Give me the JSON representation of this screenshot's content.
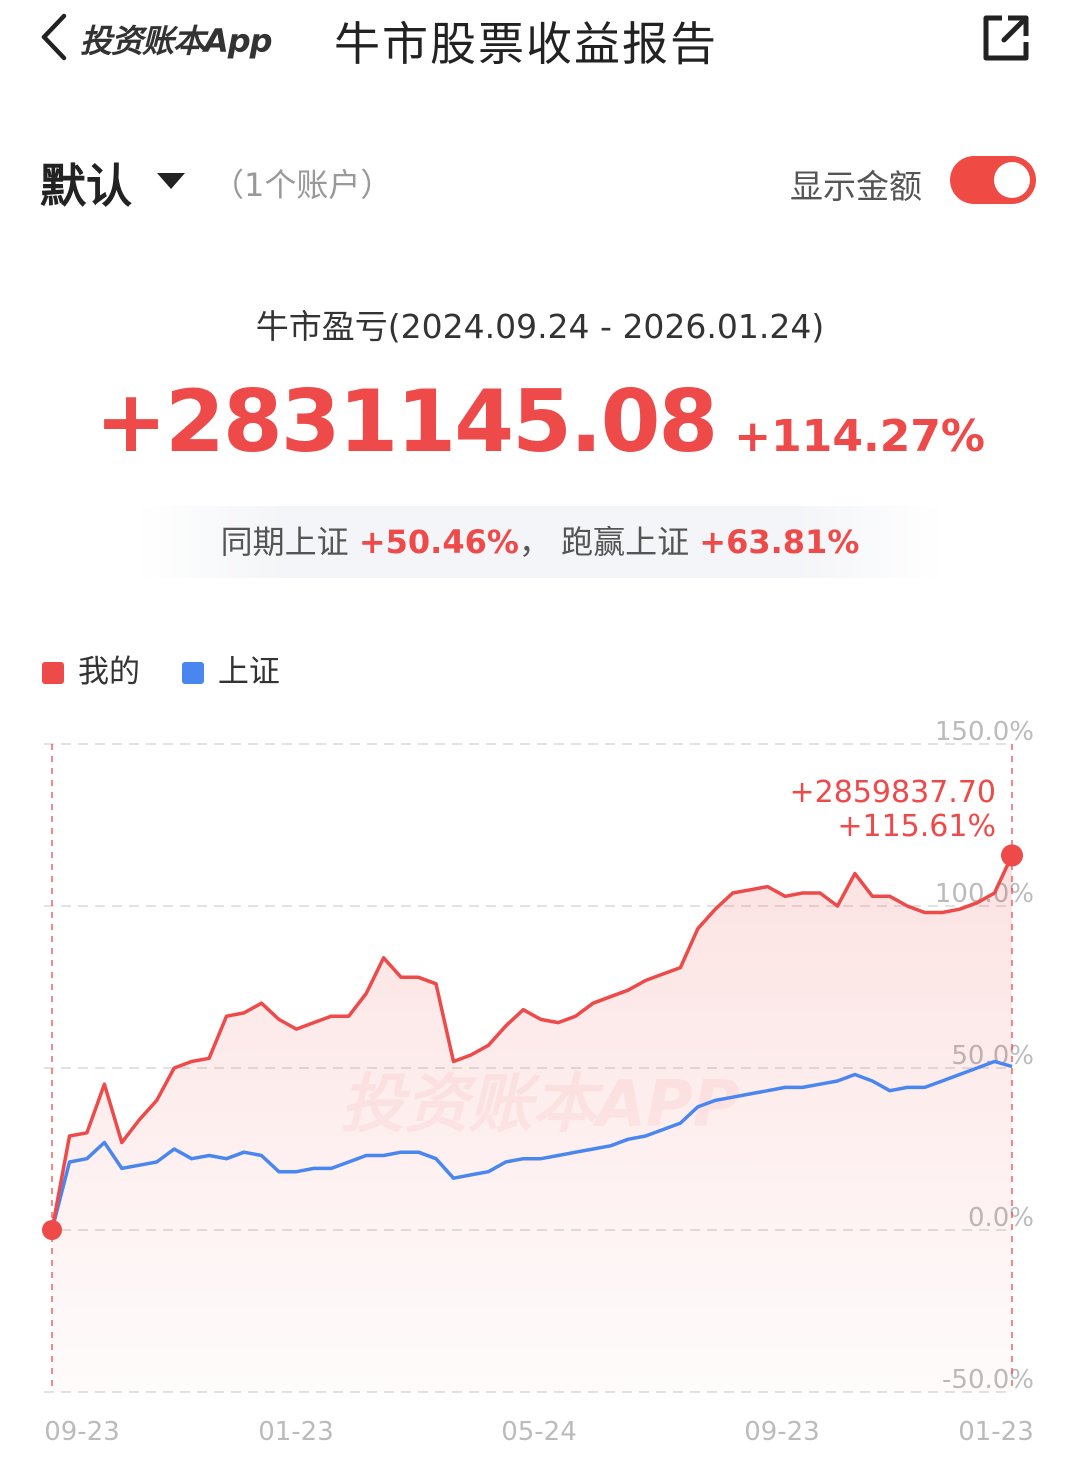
{
  "header": {
    "brand": "投资账本App",
    "title": "牛市股票收益报告"
  },
  "account": {
    "name": "默认",
    "count": "（1个账户）",
    "show_amount_label": "显示金额",
    "show_amount_on": true
  },
  "summary": {
    "period": "牛市盈亏(2024.09.24 - 2026.01.24)",
    "amount": "+2831145.08",
    "percent": "+114.27%",
    "compare_prefix": "同期上证",
    "compare_index": "+50.46%",
    "compare_sep": "，",
    "beat_prefix": "跑赢上证",
    "beat_value": "+63.81%"
  },
  "legend": [
    {
      "label": "我的",
      "color": "#ee4a4a"
    },
    {
      "label": "上证",
      "color": "#4a86f0"
    }
  ],
  "colors": {
    "accent": "#ee4a4a",
    "index": "#4a86f0"
  },
  "icons": {
    "back": "chevron-left-icon",
    "share": "share-icon",
    "caret": "caret-down-icon"
  },
  "chart_data": {
    "type": "line",
    "watermark": "投资账本APP",
    "x_tick_labels": [
      "09-23",
      "01-23",
      "05-24",
      "09-23",
      "01-23"
    ],
    "y_tick_labels": [
      "150.0%",
      "100.0%",
      "50.0%",
      "0.0%",
      "-50.0%"
    ],
    "ylim": [
      -50,
      150
    ],
    "grid": true,
    "end_annotation": {
      "amount": "+2859837.70",
      "percent": "+115.61%"
    },
    "series": [
      {
        "name": "我的",
        "color": "#ee4a4a",
        "values": [
          0,
          29,
          30,
          45,
          27,
          34,
          40,
          50,
          52,
          53,
          66,
          67,
          70,
          65,
          62,
          64,
          66,
          66,
          73,
          84,
          78,
          78,
          76,
          52,
          54,
          57,
          63,
          68,
          65,
          64,
          66,
          70,
          72,
          74,
          77,
          79,
          81,
          93,
          99,
          104,
          105,
          106,
          103,
          104,
          104,
          100,
          110,
          103,
          103,
          100,
          98,
          98,
          99,
          101,
          104,
          115.61
        ]
      },
      {
        "name": "上证",
        "color": "#4a86f0",
        "values": [
          0,
          21,
          22,
          27,
          19,
          20,
          21,
          25,
          22,
          23,
          22,
          24,
          23,
          18,
          18,
          19,
          19,
          21,
          23,
          23,
          24,
          24,
          22,
          16,
          17,
          18,
          21,
          22,
          22,
          23,
          24,
          25,
          26,
          28,
          29,
          31,
          33,
          38,
          40,
          41,
          42,
          43,
          44,
          44,
          45,
          46,
          48,
          46,
          43,
          44,
          44,
          46,
          48,
          50,
          52,
          50.46
        ]
      }
    ]
  }
}
